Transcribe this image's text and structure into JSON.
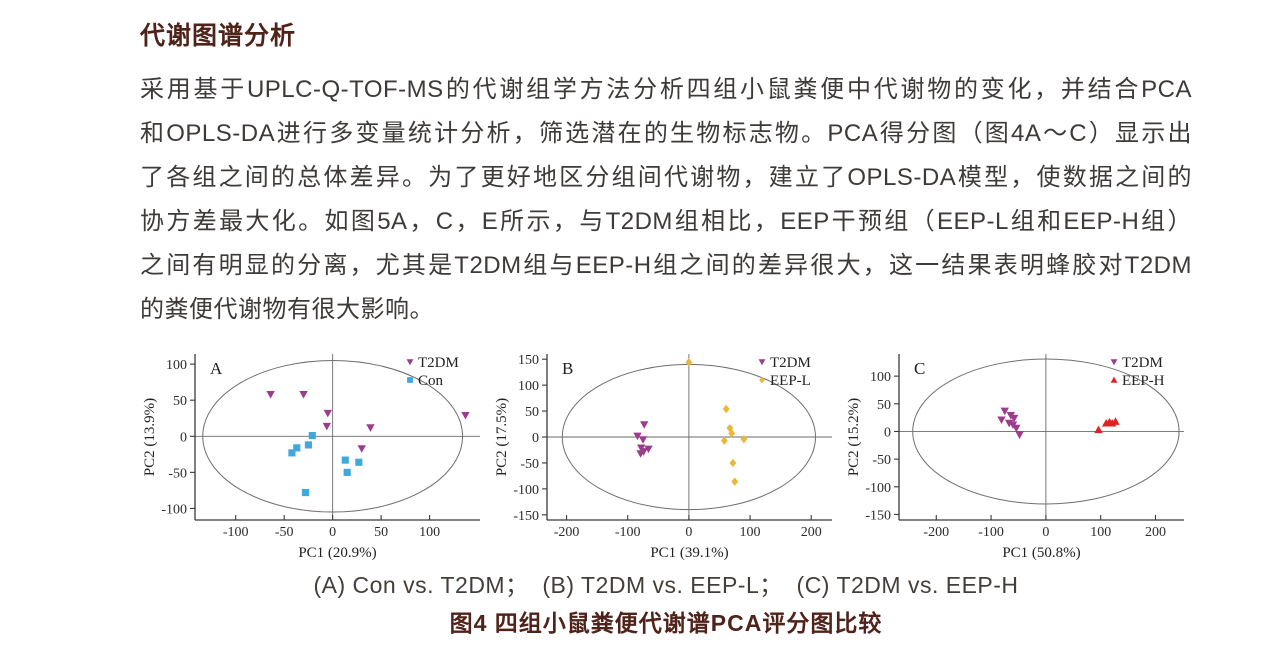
{
  "colors": {
    "heading": "#4f231a",
    "body_text": "#3d3a38",
    "subcaption_text": "#453d38",
    "caption": "#4f231a",
    "axis": "#3a3a3a",
    "grid_zero_line": "#6a6a6a",
    "ellipse": "#6f6f6f",
    "t2dm_purple": "#9d3c8f",
    "con_blue": "#3fa9dc",
    "eepl_yellow": "#e8b73b",
    "eeph_red": "#df2323"
  },
  "article": {
    "heading": "代谢图谱分析",
    "paragraph_lines": [
      "采用基于UPLC-Q-TOF-MS的代谢组学方法分析四组小鼠粪便中代谢物的变化，并结合PCA",
      "和OPLS-DA进行多变量统计分析，筛选潜在的生物标志物。PCA得分图（图4A～C）显示出",
      "了各组之间的总体差异。为了更好地区分组间代谢物，建立了OPLS-DA模型，使数据之间的",
      "协方差最大化。如图5A，C，E所示，与T2DM组相比，EEP干预组（EEP-L组和EEP-H组）",
      "之间有明显的分离，尤其是T2DM组与EEP-H组之间的差异很大，这一结果表明蜂胶对T2DM",
      "的粪便代谢物有很大影响。"
    ]
  },
  "figure": {
    "subcaption": "(A) Con vs. T2DM；  (B) T2DM vs. EEP-L；  (C) T2DM vs. EEP-H",
    "caption": "图4  四组小鼠粪便代谢谱PCA评分图比较"
  },
  "chart_data": [
    {
      "type": "scatter",
      "panel": "A",
      "xlabel": "PC1 (20.9%)",
      "ylabel": "PC2 (13.9%)",
      "xlim": [
        -142,
        152
      ],
      "ylim": [
        -116,
        114
      ],
      "xticks": [
        -100,
        -50,
        0,
        50,
        100
      ],
      "yticks": [
        -100,
        -50,
        0,
        50,
        100
      ],
      "ellipse": {
        "cx": 0,
        "cy": 0,
        "rx": 134,
        "ry": 105
      },
      "legend_position": "top-right",
      "series": [
        {
          "name": "T2DM",
          "marker": "triangle-down",
          "color": "#9d3c8f",
          "points": [
            [
              -64,
              58
            ],
            [
              -30,
              58
            ],
            [
              -5,
              32
            ],
            [
              -6,
              14
            ],
            [
              39,
              12
            ],
            [
              30,
              -17
            ],
            [
              137,
              29
            ]
          ]
        },
        {
          "name": "Con",
          "marker": "square",
          "color": "#3fa9dc",
          "points": [
            [
              -21,
              1
            ],
            [
              -25,
              -12
            ],
            [
              -37,
              -16
            ],
            [
              -42,
              -23
            ],
            [
              13,
              -33
            ],
            [
              27,
              -36
            ],
            [
              15,
              -50
            ],
            [
              -28,
              -78
            ]
          ]
        }
      ]
    },
    {
      "type": "scatter",
      "panel": "B",
      "xlabel": "PC1 (39.1%)",
      "ylabel": "PC2 (17.5%)",
      "xlim": [
        -232,
        234
      ],
      "ylim": [
        -160,
        160
      ],
      "xticks": [
        -200,
        -100,
        0,
        100,
        200
      ],
      "yticks": [
        -150,
        -100,
        -50,
        0,
        50,
        100,
        150
      ],
      "ellipse": {
        "cx": 0,
        "cy": 0,
        "rx": 207,
        "ry": 140
      },
      "legend_position": "top-right",
      "series": [
        {
          "name": "T2DM",
          "marker": "triangle-down",
          "color": "#9d3c8f",
          "points": [
            [
              -73,
              24
            ],
            [
              -84,
              2
            ],
            [
              -75,
              -5
            ],
            [
              -78,
              -21
            ],
            [
              -74,
              -28
            ],
            [
              -66,
              -23
            ],
            [
              -79,
              -32
            ]
          ]
        },
        {
          "name": "EEP-L",
          "marker": "diamond",
          "color": "#e8b73b",
          "points": [
            [
              0,
              144
            ],
            [
              61,
              54
            ],
            [
              67,
              17
            ],
            [
              70,
              7
            ],
            [
              58,
              -7
            ],
            [
              90,
              -4
            ],
            [
              72,
              -50
            ],
            [
              75,
              -86
            ]
          ]
        }
      ]
    },
    {
      "type": "scatter",
      "panel": "C",
      "xlabel": "PC1 (50.8%)",
      "ylabel": "PC2 (15.2%)",
      "xlim": [
        -268,
        252
      ],
      "ylim": [
        -160,
        140
      ],
      "xticks": [
        -200,
        -100,
        0,
        100,
        200
      ],
      "yticks": [
        -150,
        -100,
        -50,
        0,
        50,
        100
      ],
      "ellipse": {
        "cx": 0,
        "cy": 0,
        "rx": 243,
        "ry": 131
      },
      "legend_position": "top-right",
      "series": [
        {
          "name": "T2DM",
          "marker": "triangle-down",
          "color": "#9d3c8f",
          "points": [
            [
              -75,
              37
            ],
            [
              -64,
              29
            ],
            [
              -81,
              21
            ],
            [
              -58,
              24
            ],
            [
              -67,
              15
            ],
            [
              -60,
              12
            ],
            [
              -54,
              6
            ],
            [
              -48,
              -6
            ]
          ]
        },
        {
          "name": "EEP-H",
          "marker": "triangle-up",
          "color": "#df2323",
          "points": [
            [
              96,
              3
            ],
            [
              110,
              15
            ],
            [
              116,
              17
            ],
            [
              121,
              15
            ],
            [
              127,
              18
            ]
          ]
        }
      ]
    }
  ]
}
